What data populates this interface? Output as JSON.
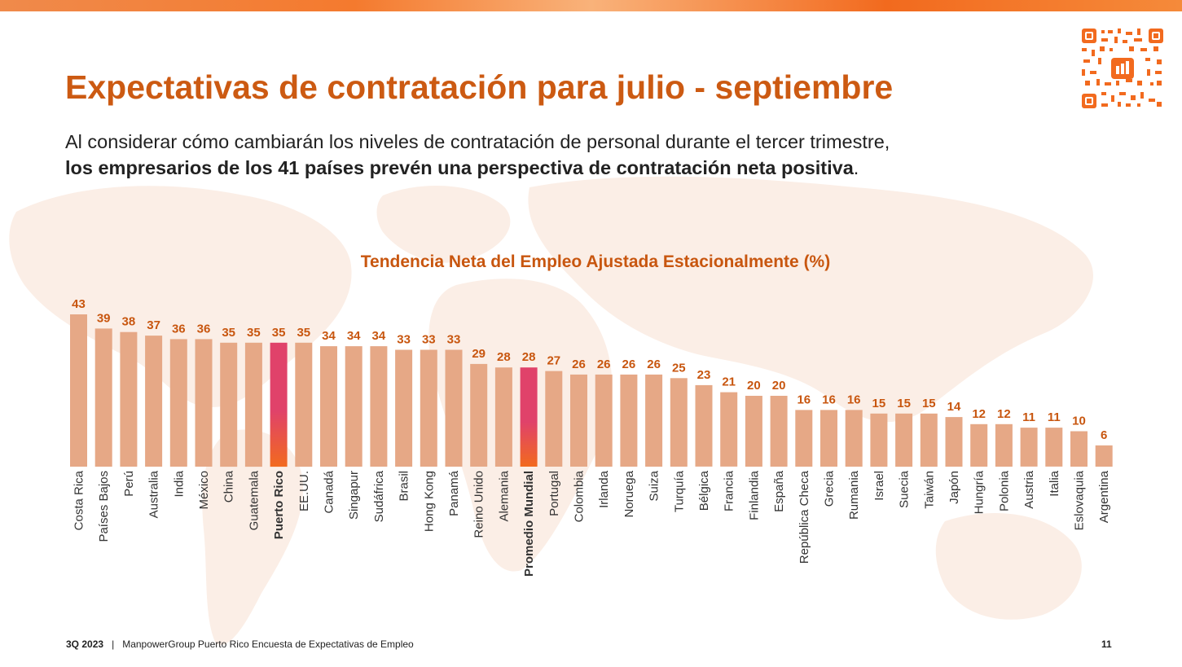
{
  "slide": {
    "title": "Expectativas de contratación para julio - septiembre",
    "subtitle_regular": "Al considerar cómo cambiarán los niveles de contratación de personal durante el tercer trimestre,",
    "subtitle_bold": "los empresarios de los 41 países prevén una perspectiva de contratación neta positiva",
    "subtitle_end": ".",
    "qr_code": "qr-code-icon"
  },
  "footer": {
    "period": "3Q 2023",
    "separator": "|",
    "source": "ManpowerGroup Puerto Rico Encuesta de Expectativas de Empleo",
    "page_number": "11"
  },
  "colors": {
    "accent": "#cc5a12",
    "bar": "#e6a886",
    "highlight_top": "#e0426a",
    "highlight_bottom": "#f26a1e",
    "value_label": "#c8560f"
  },
  "chart_data": {
    "type": "bar",
    "title": "Tendencia Neta del Empleo Ajustada Estacionalmente  (%)",
    "xlabel": "",
    "ylabel": "",
    "ylim": [
      0,
      43
    ],
    "grid": false,
    "categories": [
      "Costa Rica",
      "Países Bajos",
      "Perú",
      "Australia",
      "India",
      "México",
      "China",
      "Guatemala",
      "Puerto Rico",
      "EE.UU.",
      "Canadá",
      "Singapur",
      "Sudáfrica",
      "Brasil",
      "Hong Kong",
      "Panamá",
      "Reino Unido",
      "Alemania",
      "Promedio  Mundial",
      "Portugal",
      "Colombia",
      "Irlanda",
      "Noruega",
      "Suiza",
      "Turquía",
      "Bélgica",
      "Francia",
      "Finlandia",
      "España",
      "República Checa",
      "Grecia",
      "Rumania",
      "Israel",
      "Suecia",
      "Taiwán",
      "Japón",
      "Hungría",
      "Polonia",
      "Austria",
      "Italia",
      "Eslovaquia",
      "Argentina"
    ],
    "values": [
      43,
      39,
      38,
      37,
      36,
      36,
      35,
      35,
      35,
      35,
      34,
      34,
      34,
      33,
      33,
      33,
      29,
      28,
      28,
      27,
      26,
      26,
      26,
      26,
      25,
      23,
      21,
      20,
      20,
      16,
      16,
      16,
      15,
      15,
      15,
      14,
      12,
      12,
      11,
      11,
      10,
      6
    ],
    "highlighted": [
      "Puerto Rico",
      "Promedio  Mundial"
    ]
  }
}
